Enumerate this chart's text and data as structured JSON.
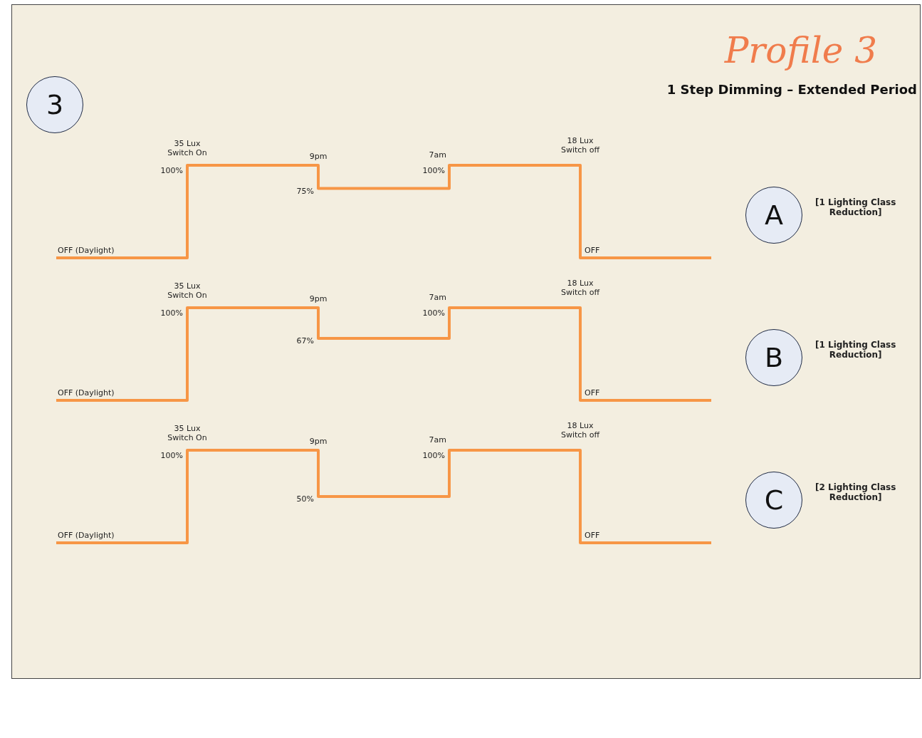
{
  "chart_data": [
    {
      "type": "step",
      "title": "Profile 3",
      "subtitle": "1 Step Dimming – Extended Period",
      "categories": [
        null,
        null,
        null,
        null,
        null,
        null
      ],
      "values": [
        0,
        100,
        75,
        100,
        0,
        0
      ],
      "value_labels": [
        "OFF (Daylight)",
        "100%",
        "75%",
        "100%",
        "OFF",
        null
      ],
      "color": "#f79646",
      "ylim": [
        0,
        100
      ],
      "tick_labels": false,
      "annotations": [
        "35 Lux\nSwitch On",
        "9pm",
        "18 Lux\nSwitch off",
        "7am",
        "A",
        "[1 Lighting Class\nReduction]",
        "3"
      ]
    },
    {
      "type": "step",
      "categories": [
        null,
        null,
        null,
        null,
        null,
        null
      ],
      "values": [
        0,
        100,
        67,
        100,
        0,
        0
      ],
      "value_labels": [
        "OFF (Daylight)",
        "100%",
        "67%",
        "100%",
        "OFF",
        null
      ],
      "color": "#f79646",
      "ylim": [
        0,
        100
      ],
      "tick_labels": false,
      "annotations": [
        "35 Lux\nSwitch On",
        "9pm",
        "18 Lux\nSwitch off",
        "7am",
        "B",
        "[1 Lighting Class\nReduction]"
      ]
    },
    {
      "type": "step",
      "categories": [
        null,
        null,
        null,
        null,
        null,
        null
      ],
      "values": [
        0,
        100,
        50,
        100,
        0,
        0
      ],
      "value_labels": [
        "OFF (Daylight)",
        "100%",
        "50%",
        "100%",
        "OFF",
        null
      ],
      "color": "#f79646",
      "ylim": [
        0,
        100
      ],
      "tick_labels": false,
      "annotations": [
        "35 Lux\nSwitch On",
        "9pm",
        "18 Lux\nSwitch off",
        "7am",
        "C",
        "[2 Lighting Class\nReduction]"
      ]
    }
  ]
}
